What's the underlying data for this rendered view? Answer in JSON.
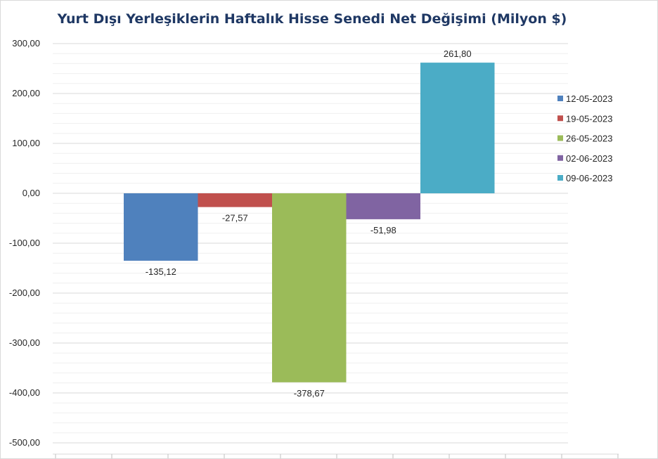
{
  "chart_data": {
    "type": "bar",
    "title": "Yurt Dışı Yerleşiklerin Haftalık Hisse Senedi Net Değişimi (Milyon $)",
    "xlabel": "",
    "ylabel": "",
    "ylim": [
      -500,
      300
    ],
    "yticks": [
      300,
      200,
      100,
      0,
      -100,
      -200,
      -300,
      -400,
      -500
    ],
    "ytick_labels": [
      "300,00",
      "200,00",
      "100,00",
      "0,00",
      "-100,00",
      "-200,00",
      "-300,00",
      "-400,00",
      "-500,00"
    ],
    "grid": "horizontal-major-minor",
    "legend_position": "right",
    "series": [
      {
        "name": "12-05-2023",
        "value": -135.12,
        "label": "-135,12",
        "color": "#4f81bd"
      },
      {
        "name": "19-05-2023",
        "value": -27.57,
        "label": "-27,57",
        "color": "#c0504d"
      },
      {
        "name": "26-05-2023",
        "value": -378.67,
        "label": "-378,67",
        "color": "#9bbb59"
      },
      {
        "name": "02-06-2023",
        "value": -51.98,
        "label": "-51,98",
        "color": "#8064a2"
      },
      {
        "name": "09-06-2023",
        "value": 261.8,
        "label": "261,80",
        "color": "#4bacc6"
      }
    ]
  }
}
